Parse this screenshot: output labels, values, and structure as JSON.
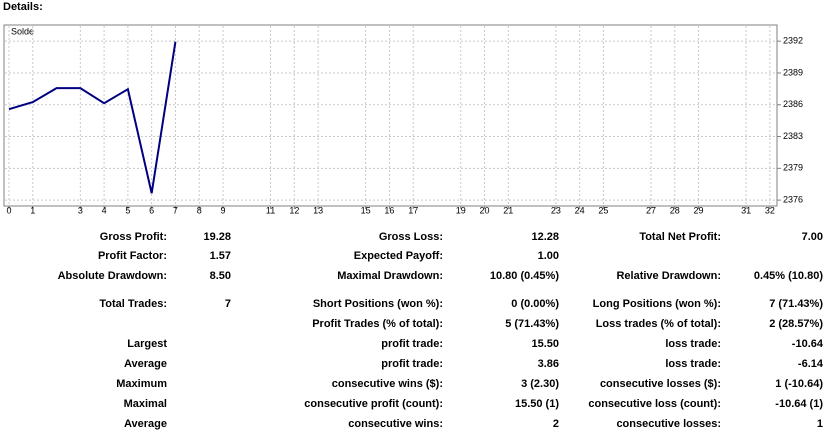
{
  "header": {
    "title": "Details:"
  },
  "chart_data": {
    "type": "line",
    "x": [
      0,
      1,
      2,
      3,
      4,
      5,
      6,
      7
    ],
    "series": [
      {
        "name": "Solde",
        "color": "#000080",
        "values": [
          2385.3,
          2386.02,
          2387.45,
          2387.45,
          2385.91,
          2387.34,
          2376.7,
          2392.2
        ]
      }
    ],
    "xlim": [
      0,
      32.3
    ],
    "xticks": [
      0,
      1,
      3,
      4,
      5,
      6,
      7,
      8,
      9,
      11,
      12,
      13,
      15,
      16,
      17,
      19,
      20,
      21,
      23,
      24,
      25,
      27,
      28,
      29,
      31,
      32
    ],
    "ylim": [
      2375.5,
      2393.7
    ],
    "yticks": [
      {
        "value": 2376,
        "label": "2376"
      },
      {
        "value": 2379.25,
        "label": "2379"
      },
      {
        "value": 2382.5,
        "label": "2383"
      },
      {
        "value": 2385.75,
        "label": "2386"
      },
      {
        "value": 2389,
        "label": "2389"
      },
      {
        "value": 2392.25,
        "label": "2392"
      }
    ],
    "grid": true
  },
  "table": {
    "rows": [
      [
        "Gross Profit:",
        "19.28",
        "Gross Loss:",
        "12.28",
        "Total Net Profit:",
        "7.00"
      ],
      [
        "Profit Factor:",
        "1.57",
        "Expected Payoff:",
        "1.00",
        null,
        null
      ],
      [
        "Absolute Drawdown:",
        "8.50",
        "Maximal Drawdown:",
        "10.80 (0.45%)",
        "Relative Drawdown:",
        "0.45% (10.80)"
      ],
      [
        "Total Trades:",
        "7",
        "Short Positions (won %):",
        "0 (0.00%)",
        "Long Positions (won %):",
        "7 (71.43%)"
      ],
      [
        null,
        null,
        "Profit Trades (% of total):",
        "5 (71.43%)",
        "Loss trades (% of total):",
        "2 (28.57%)"
      ],
      [
        "Largest",
        null,
        "profit trade:",
        "15.50",
        "loss trade:",
        "-10.64"
      ],
      [
        "Average",
        null,
        "profit trade:",
        "3.86",
        "loss trade:",
        "-6.14"
      ],
      [
        "Maximum",
        null,
        "consecutive wins ($):",
        "3 (2.30)",
        "consecutive losses ($):",
        "1 (-10.64)"
      ],
      [
        "Maximal",
        null,
        "consecutive profit (count):",
        "15.50 (1)",
        "consecutive loss (count):",
        "-10.64 (1)"
      ],
      [
        "Average",
        null,
        "consecutive wins:",
        "2",
        "consecutive losses:",
        "1"
      ]
    ]
  }
}
